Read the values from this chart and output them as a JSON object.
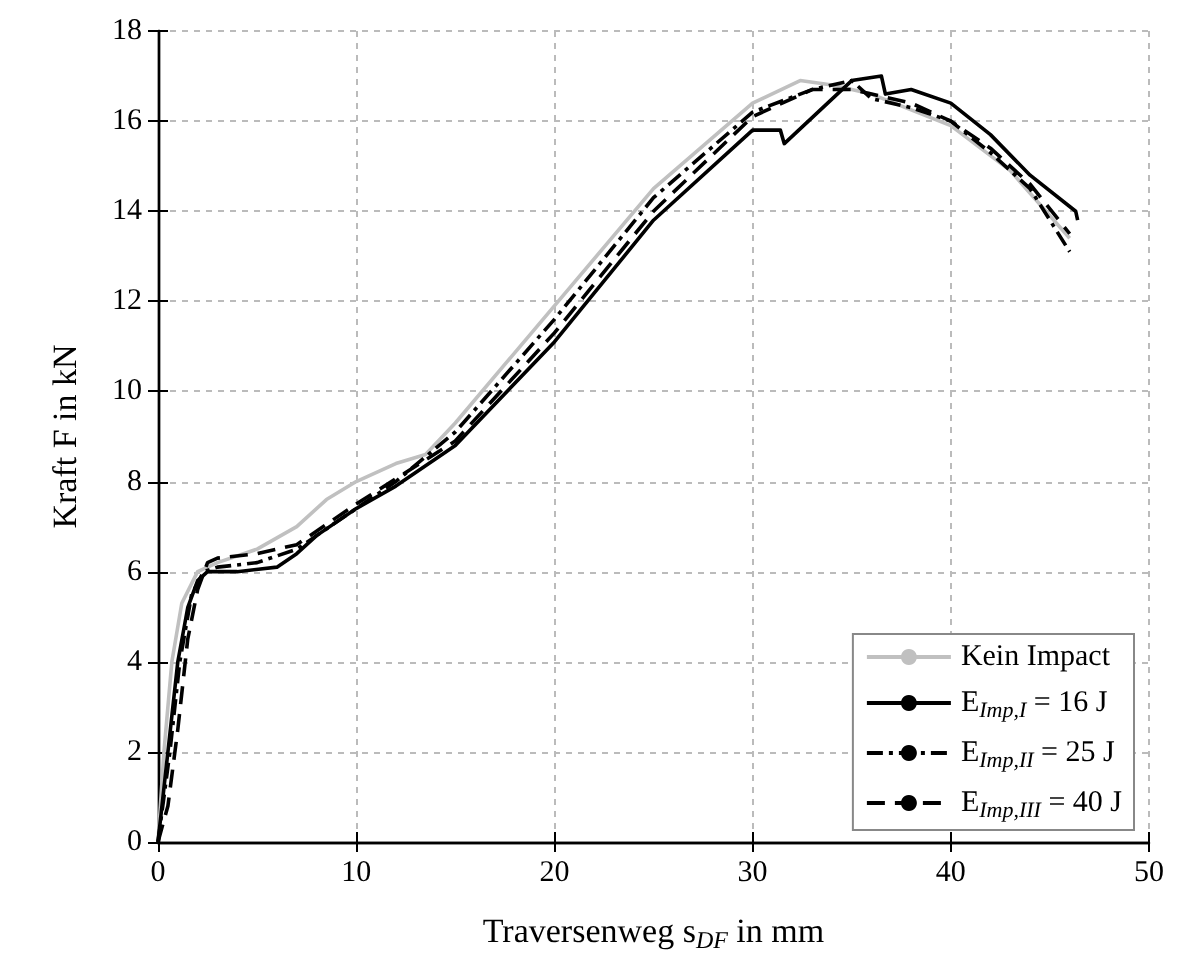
{
  "chart_data": {
    "type": "line",
    "xlabel": "Traversenweg s$_{DF}$ in mm",
    "ylabel": "Kraft F in kN",
    "xlim": [
      0,
      50
    ],
    "ylim": [
      0,
      18
    ],
    "xticks": [
      0,
      10,
      20,
      30,
      40,
      50
    ],
    "yticks": [
      0,
      2,
      4,
      6,
      8,
      10,
      12,
      14,
      16,
      18
    ],
    "grid": true,
    "legend": "bottom right",
    "marker": "none",
    "series": [
      {
        "name": "Kein Impact",
        "color": "#c0c0c0",
        "line_style": "solid",
        "x": [
          0,
          0.3,
          0.7,
          1.2,
          2,
          3,
          5,
          7,
          8.5,
          10,
          12,
          13.5,
          15,
          20,
          25,
          30,
          32.4,
          34,
          36,
          40,
          43,
          46
        ],
        "values": [
          0,
          2,
          4,
          5.3,
          6,
          6.2,
          6.5,
          7,
          7.6,
          8,
          8.4,
          8.6,
          9.3,
          11.9,
          14.5,
          16.4,
          16.9,
          16.8,
          16.6,
          15.9,
          14.9,
          13.4
        ]
      },
      {
        "name": "E$_{Imp,I}$ = 16 J",
        "color": "#000000",
        "line_style": "solid",
        "x": [
          0,
          0.5,
          1,
          1.5,
          2,
          2.5,
          4,
          6,
          7,
          8,
          10,
          12,
          14,
          15,
          20,
          25,
          30,
          31.4,
          31.6,
          35,
          36.5,
          36.7,
          38,
          40,
          42,
          44,
          46.3,
          46.4
        ],
        "values": [
          0,
          2,
          4,
          5.2,
          5.8,
          6,
          6,
          6.1,
          6.4,
          6.8,
          7.4,
          7.9,
          8.5,
          8.8,
          11.1,
          13.8,
          15.8,
          15.8,
          15.5,
          16.9,
          17,
          16.6,
          16.7,
          16.4,
          15.7,
          14.8,
          14,
          13.8
        ]
      },
      {
        "name": "E$_{Imp,II}$ = 25 J",
        "color": "#000000",
        "line_style": "dashdot",
        "x": [
          0,
          0.6,
          1.1,
          1.7,
          2.3,
          3,
          5,
          7,
          10,
          12,
          15,
          20,
          25,
          30,
          33,
          35,
          36,
          38,
          40,
          42,
          44,
          46
        ],
        "values": [
          0,
          2,
          4,
          5.5,
          6,
          6.1,
          6.2,
          6.5,
          7.4,
          8,
          9.1,
          11.6,
          14.3,
          16.2,
          16.7,
          16.9,
          16.5,
          16.3,
          16,
          15.3,
          14.5,
          13.1
        ]
      },
      {
        "name": "E$_{Imp,III}$ = 40 J",
        "color": "#000000",
        "line_style": "dashed",
        "x": [
          0,
          0.5,
          1,
          1.5,
          2,
          2.5,
          3,
          5,
          7,
          10,
          15,
          20,
          25,
          30,
          33,
          35,
          36,
          38,
          40,
          42,
          44,
          46
        ],
        "values": [
          0,
          0.8,
          2.5,
          4.5,
          5.6,
          6.2,
          6.3,
          6.4,
          6.6,
          7.5,
          8.9,
          11.3,
          14,
          16.1,
          16.7,
          16.7,
          16.6,
          16.4,
          16,
          15.4,
          14.6,
          13.5
        ]
      }
    ]
  }
}
